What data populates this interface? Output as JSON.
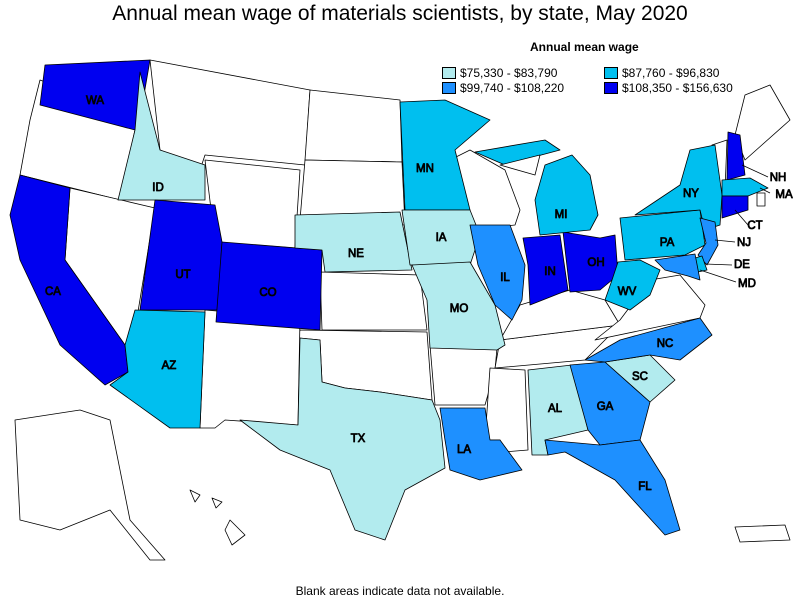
{
  "title": "Annual mean wage of materials scientists, by state, May 2020",
  "legend": {
    "title": "Annual mean wage",
    "items": [
      {
        "range": "$75,330 - $83,790",
        "color": "#b2ebee"
      },
      {
        "range": "$87,760 - $96,830",
        "color": "#00bfef"
      },
      {
        "range": "$99,740 - $108,220",
        "color": "#1e90ff"
      },
      {
        "range": "$108,350 - $156,630",
        "color": "#0000f0"
      }
    ]
  },
  "footnote": "Blank areas indicate data not available.",
  "states": [
    {
      "code": "WA",
      "tier": 4
    },
    {
      "code": "CA",
      "tier": 4
    },
    {
      "code": "UT",
      "tier": 4
    },
    {
      "code": "CO",
      "tier": 4
    },
    {
      "code": "IN",
      "tier": 4
    },
    {
      "code": "OH",
      "tier": 4
    },
    {
      "code": "NH",
      "tier": 4
    },
    {
      "code": "CT",
      "tier": 4
    },
    {
      "code": "IL",
      "tier": 3
    },
    {
      "code": "LA",
      "tier": 3
    },
    {
      "code": "GA",
      "tier": 3
    },
    {
      "code": "FL",
      "tier": 3
    },
    {
      "code": "NC",
      "tier": 3
    },
    {
      "code": "NJ",
      "tier": 3
    },
    {
      "code": "MD",
      "tier": 3
    },
    {
      "code": "AZ",
      "tier": 2
    },
    {
      "code": "MN",
      "tier": 2
    },
    {
      "code": "MI",
      "tier": 2
    },
    {
      "code": "NY",
      "tier": 2
    },
    {
      "code": "PA",
      "tier": 2
    },
    {
      "code": "WV",
      "tier": 2
    },
    {
      "code": "MA",
      "tier": 2
    },
    {
      "code": "DE",
      "tier": 2
    },
    {
      "code": "ID",
      "tier": 1
    },
    {
      "code": "NE",
      "tier": 1
    },
    {
      "code": "IA",
      "tier": 1
    },
    {
      "code": "MO",
      "tier": 1
    },
    {
      "code": "TX",
      "tier": 1
    },
    {
      "code": "AL",
      "tier": 1
    },
    {
      "code": "SC",
      "tier": 1
    }
  ]
}
